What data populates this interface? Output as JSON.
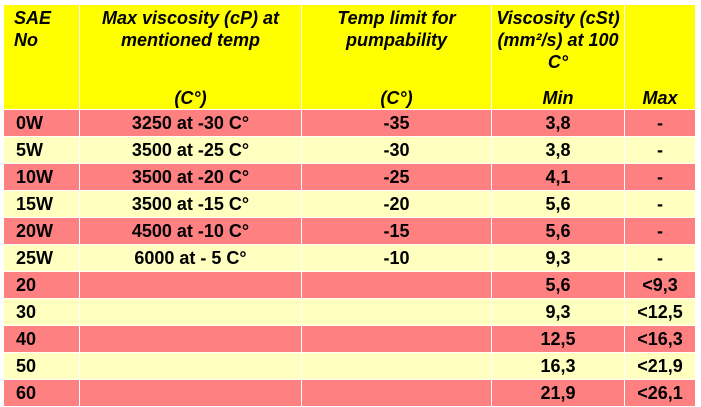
{
  "header": {
    "sae": "SAE No",
    "max_viscosity": "Max viscosity (cP) at mentioned temp",
    "max_viscosity_unit": "(C°)",
    "temp_limit": "Temp limit for pumpability",
    "temp_limit_unit": "(C°)",
    "viscosity": "Viscosity (cSt) (mm²/s) at 100 C°",
    "min": "Min",
    "max": "Max"
  },
  "colors": {
    "header_bg": "#ffff00",
    "row_pink": "#ff8080",
    "row_cream": "#ffffc0"
  },
  "rows": [
    {
      "sae": "0W",
      "max_visc": "3250 at -30 C°",
      "temp_limit": "-35",
      "min": "3,8",
      "max": "-"
    },
    {
      "sae": "5W",
      "max_visc": "3500 at -25 C°",
      "temp_limit": "-30",
      "min": "3,8",
      "max": "-"
    },
    {
      "sae": "10W",
      "max_visc": "3500 at -20 C°",
      "temp_limit": "-25",
      "min": "4,1",
      "max": "-"
    },
    {
      "sae": "15W",
      "max_visc": "3500 at -15 C°",
      "temp_limit": "-20",
      "min": "5,6",
      "max": "-"
    },
    {
      "sae": "20W",
      "max_visc": "4500 at -10 C°",
      "temp_limit": "-15",
      "min": "5,6",
      "max": "-"
    },
    {
      "sae": "25W",
      "max_visc": "6000 at - 5 C°",
      "temp_limit": "-10",
      "min": "9,3",
      "max": "-"
    },
    {
      "sae": "20",
      "max_visc": "",
      "temp_limit": "",
      "min": "5,6",
      "max": "<9,3"
    },
    {
      "sae": "30",
      "max_visc": "",
      "temp_limit": "",
      "min": "9,3",
      "max": "<12,5"
    },
    {
      "sae": "40",
      "max_visc": "",
      "temp_limit": "",
      "min": "12,5",
      "max": "<16,3"
    },
    {
      "sae": "50",
      "max_visc": "",
      "temp_limit": "",
      "min": "16,3",
      "max": "<21,9"
    },
    {
      "sae": "60",
      "max_visc": "",
      "temp_limit": "",
      "min": "21,9",
      "max": "<26,1"
    }
  ]
}
